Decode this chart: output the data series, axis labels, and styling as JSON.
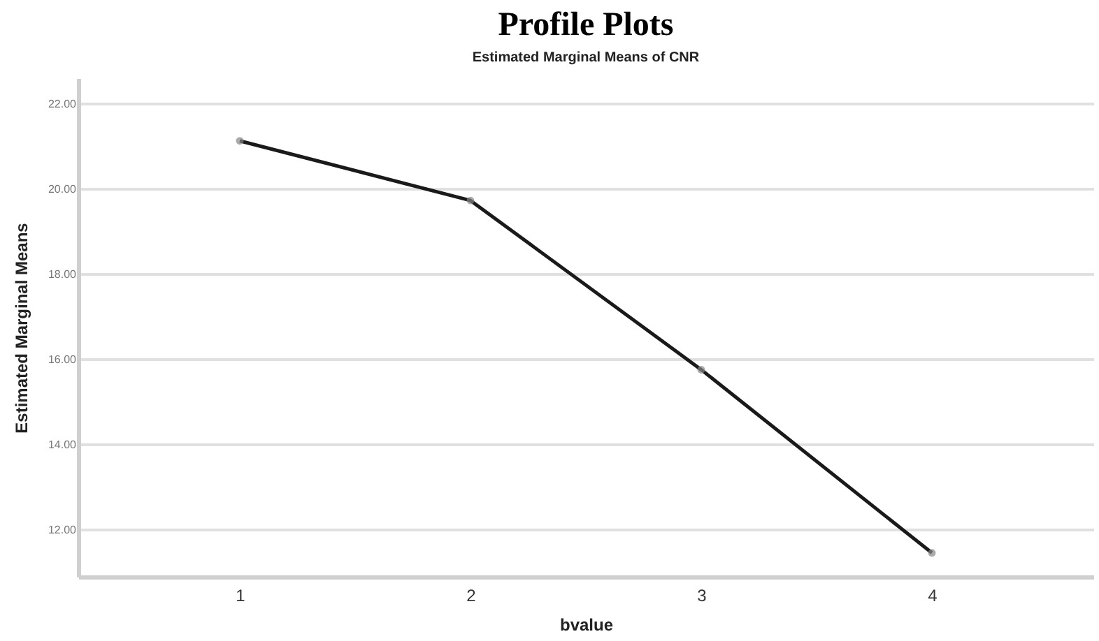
{
  "chart_data": {
    "type": "line",
    "title": "Profile Plots",
    "subtitle": "Estimated Marginal Means of CNR",
    "xlabel": "bvalue",
    "ylabel": "Estimated Marginal Means",
    "categories": [
      "1",
      "2",
      "3",
      "4"
    ],
    "series": [
      {
        "color": "#1a1a1a",
        "values": [
          21.13,
          19.73,
          15.76,
          11.46
        ]
      }
    ],
    "ylim": [
      10.9,
      22.6
    ],
    "yticks": [
      {
        "value": 12,
        "label": "12.00"
      },
      {
        "value": 14,
        "label": "14.00"
      },
      {
        "value": 16,
        "label": "16.00"
      },
      {
        "value": 18,
        "label": "18.00"
      },
      {
        "value": 20,
        "label": "20.00"
      },
      {
        "value": 22,
        "label": "22.00"
      }
    ],
    "grid": "y",
    "marker": "circle",
    "line_style": "solid",
    "legend": false
  }
}
